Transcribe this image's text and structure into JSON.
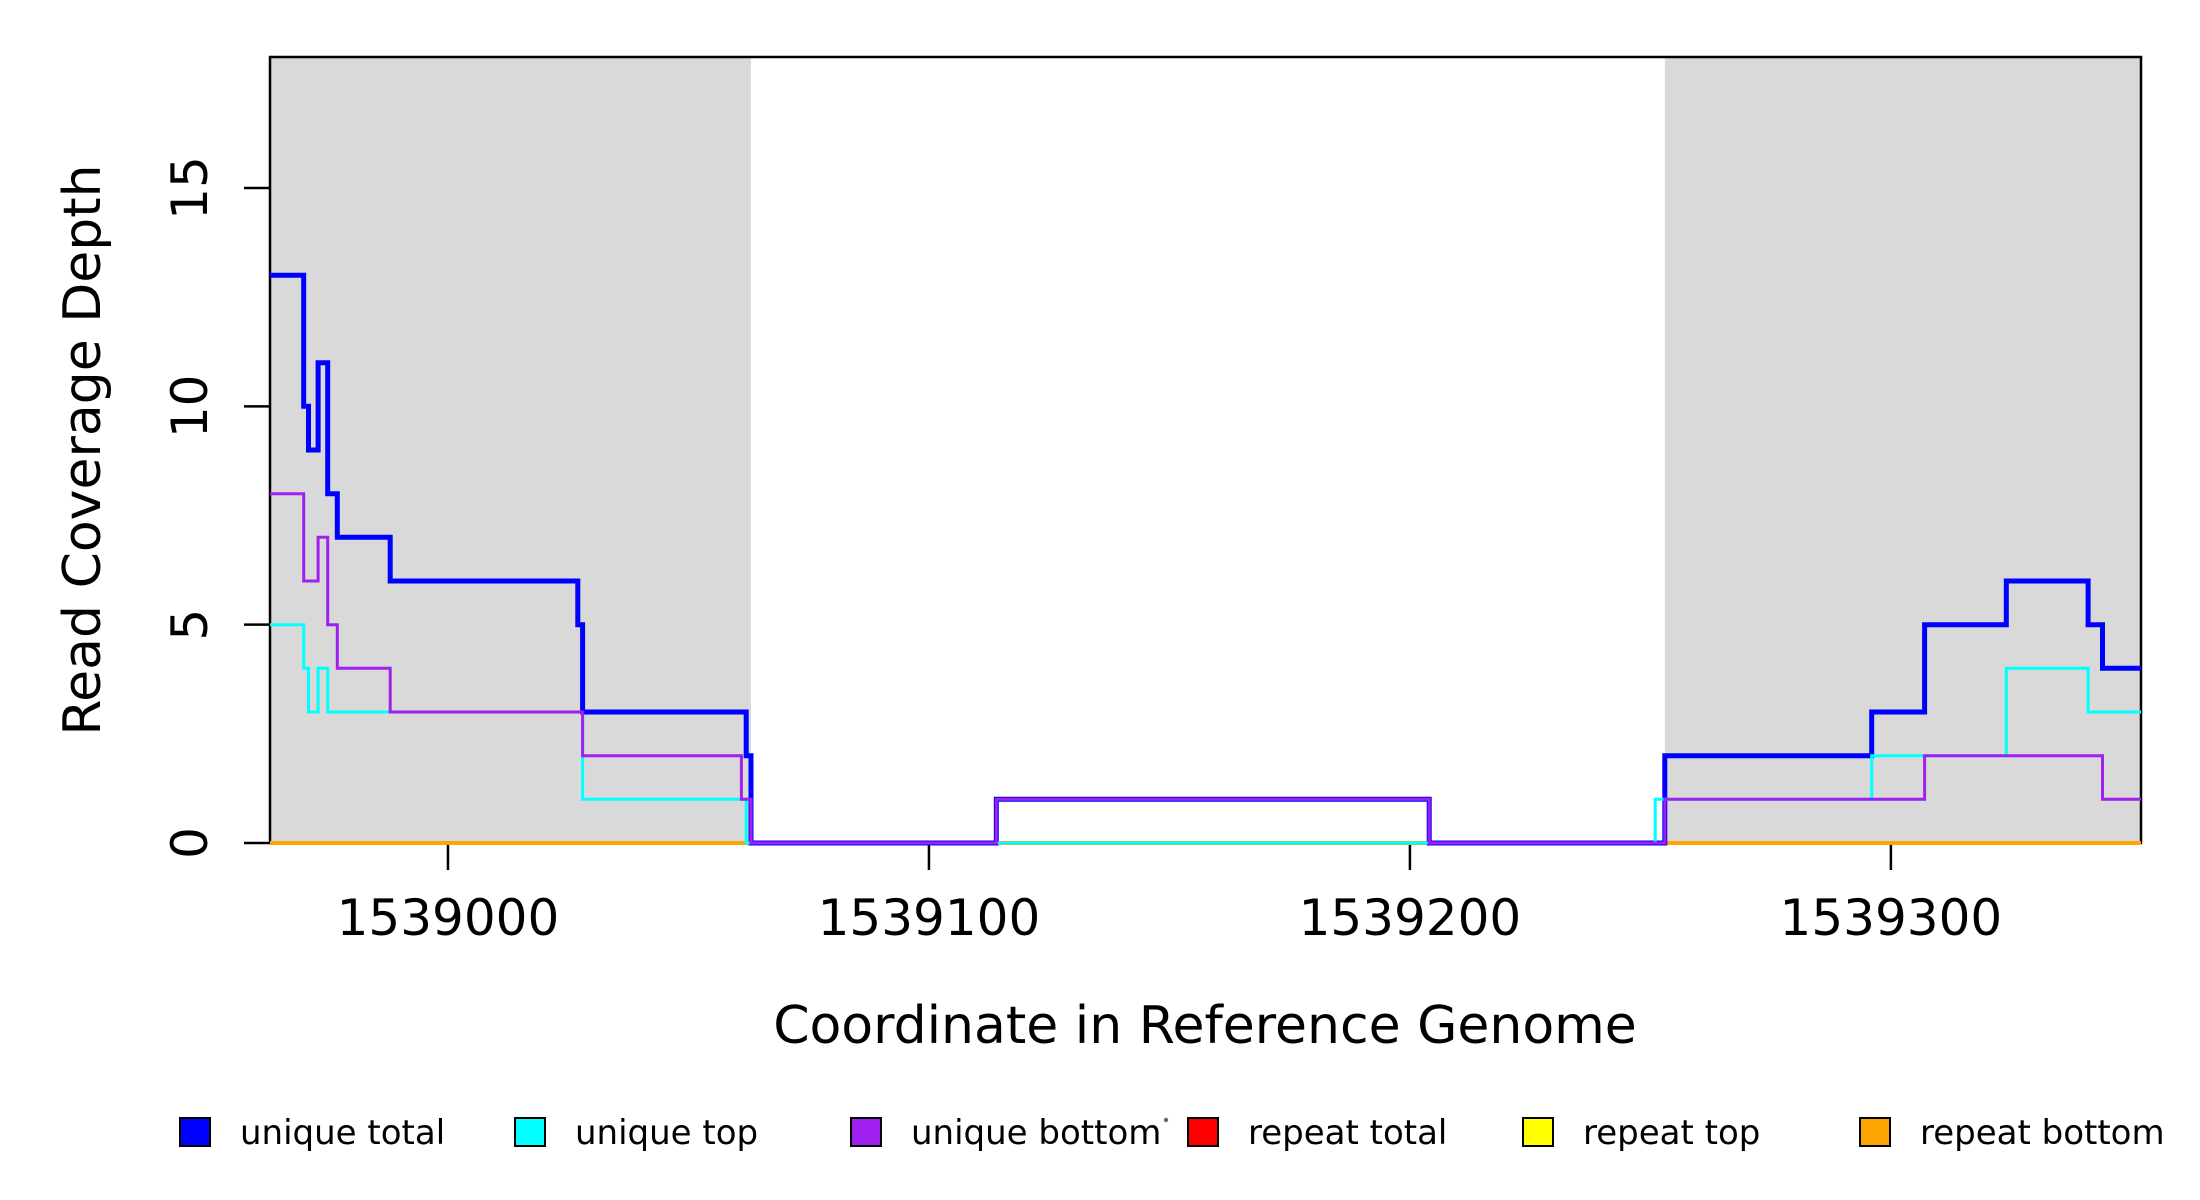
{
  "chart_data": {
    "type": "line",
    "subtype": "step-coverage",
    "title": "",
    "xlabel": "Coordinate in Reference Genome",
    "ylabel": "Read Coverage Depth",
    "xlim": [
      1538963,
      1539352
    ],
    "ylim": [
      0,
      18
    ],
    "x_ticks": [
      1539000,
      1539100,
      1539200,
      1539300
    ],
    "x_tick_labels": [
      "1539000",
      "1539100",
      "1539200",
      "1539300"
    ],
    "y_ticks": [
      0,
      5,
      10,
      15
    ],
    "y_tick_labels": [
      "0",
      "5",
      "10",
      "15"
    ],
    "grid": false,
    "legend_position": "bottom",
    "shade_color": "#d9d9d9",
    "axis_color": "#000000",
    "shaded_regions": [
      {
        "start": 1538963,
        "end": 1539063
      },
      {
        "start": 1539253,
        "end": 1539352
      }
    ],
    "series": [
      {
        "name": "unique total",
        "color": "#0000ff",
        "width": 5,
        "z": 4,
        "steps": [
          [
            1538963,
            13
          ],
          [
            1538970,
            10
          ],
          [
            1538971,
            9
          ],
          [
            1538973,
            11
          ],
          [
            1538975,
            8
          ],
          [
            1538977,
            7
          ],
          [
            1538988,
            6
          ],
          [
            1539027,
            5
          ],
          [
            1539028,
            3
          ],
          [
            1539062,
            2
          ],
          [
            1539063,
            0
          ],
          [
            1539114,
            1
          ],
          [
            1539204,
            0
          ],
          [
            1539253,
            2
          ],
          [
            1539296,
            3
          ],
          [
            1539307,
            5
          ],
          [
            1539324,
            6
          ],
          [
            1539341,
            5
          ],
          [
            1539344,
            4
          ]
        ]
      },
      {
        "name": "unique top",
        "color": "#00ffff",
        "width": 3,
        "z": 5,
        "steps": [
          [
            1538963,
            5
          ],
          [
            1538970,
            4
          ],
          [
            1538971,
            3
          ],
          [
            1538973,
            4
          ],
          [
            1538975,
            3
          ],
          [
            1539028,
            1
          ],
          [
            1539062,
            0
          ],
          [
            1539251,
            1
          ],
          [
            1539296,
            2
          ],
          [
            1539324,
            4
          ],
          [
            1539341,
            3
          ]
        ]
      },
      {
        "name": "unique bottom",
        "color": "#a020f0",
        "width": 3,
        "z": 6,
        "steps": [
          [
            1538963,
            8
          ],
          [
            1538970,
            6
          ],
          [
            1538973,
            7
          ],
          [
            1538975,
            5
          ],
          [
            1538977,
            4
          ],
          [
            1538988,
            3
          ],
          [
            1539028,
            2
          ],
          [
            1539061,
            1
          ],
          [
            1539063,
            0
          ],
          [
            1539114,
            1
          ],
          [
            1539204,
            0
          ],
          [
            1539253,
            1
          ],
          [
            1539307,
            2
          ],
          [
            1539344,
            1
          ]
        ]
      },
      {
        "name": "repeat total",
        "color": "#ff0000",
        "width": 2.5,
        "z": 1,
        "steps": [
          [
            1538963,
            0
          ]
        ]
      },
      {
        "name": "repeat top",
        "color": "#ffff00",
        "width": 2.5,
        "z": 2,
        "steps": [
          [
            1538963,
            0
          ]
        ]
      },
      {
        "name": "repeat bottom",
        "color": "#ffa500",
        "width": 4,
        "z": 3,
        "steps": [
          [
            1538963,
            0
          ]
        ]
      }
    ]
  }
}
